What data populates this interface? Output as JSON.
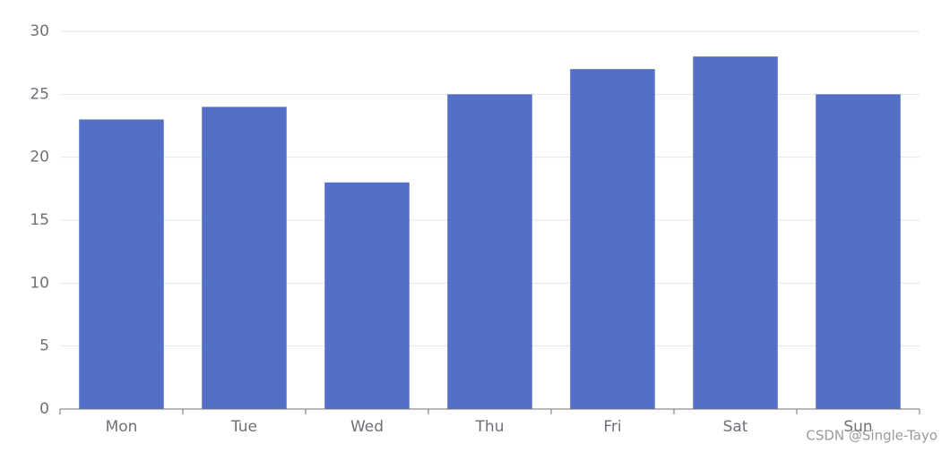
{
  "chart_data": {
    "type": "bar",
    "categories": [
      "Mon",
      "Tue",
      "Wed",
      "Thu",
      "Fri",
      "Sat",
      "Sun"
    ],
    "values": [
      23,
      24,
      18,
      25,
      27,
      28,
      25
    ],
    "color": "#5470c6",
    "ylim": [
      0,
      30
    ],
    "yticks": [
      0,
      5,
      10,
      15,
      20,
      25,
      30
    ],
    "grid": true
  },
  "watermark": "CSDN @Single-Tayo"
}
